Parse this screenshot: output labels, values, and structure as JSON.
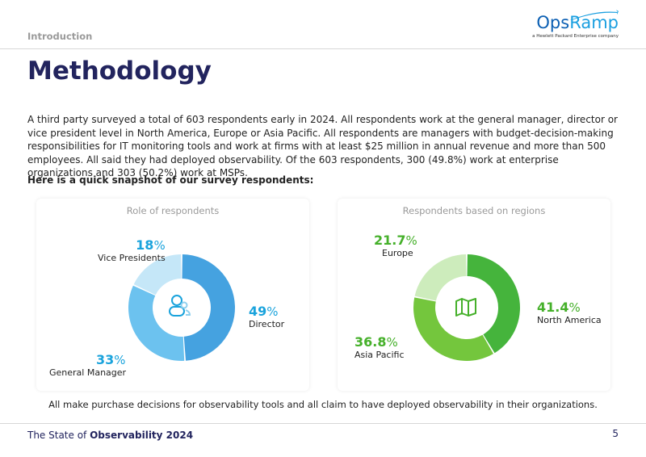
{
  "header": {
    "section": "Introduction",
    "logo": {
      "brand_a": "Ops",
      "brand_b": "Ramp",
      "tagline": "a Hewlett Packard Enterprise company"
    }
  },
  "title": "Methodology",
  "body": "A third party surveyed a total of 603 respondents early in 2024. All respondents work at the general manager, director or vice president level in North America, Europe or Asia Pacific. All respondents are managers with budget-decision-making responsibilities for IT monitoring tools and work at firms with at least $25 million in annual revenue and more than 500 employees. All said they had deployed observability. Of the 603 respondents, 300 (49.8%) work at enterprise organizations and 303 (50.2%) work at MSPs.",
  "snapshot_heading": "Here is a quick snapshot of our survey respondents:",
  "chart_data": [
    {
      "type": "pie",
      "title": "Role of respondents",
      "center_icon": "people-icon",
      "segments": [
        {
          "label": "Director",
          "value_num": 49,
          "value": "49",
          "unit": "%",
          "color": "#45a2e0"
        },
        {
          "label": "General Manager",
          "value_num": 33,
          "value": "33",
          "unit": "%",
          "color": "#6cc2ef"
        },
        {
          "label": "Vice Presidents",
          "value_num": 18,
          "value": "18",
          "unit": "%",
          "color": "#c5e7f8"
        }
      ]
    },
    {
      "type": "pie",
      "title": "Respondents based on regions",
      "center_icon": "map-icon",
      "segments": [
        {
          "label": "North America",
          "value_num": 41.4,
          "value": "41.4",
          "unit": "%",
          "color": "#45b43c"
        },
        {
          "label": "Asia Pacific",
          "value_num": 36.8,
          "value": "36.8",
          "unit": "%",
          "color": "#74c63d"
        },
        {
          "label": "Europe",
          "value_num": 21.7,
          "value": "21.7",
          "unit": "%",
          "color": "#cdecbc"
        }
      ]
    }
  ],
  "footnote": "All make purchase decisions for observability tools and all claim to have deployed observability in their organizations.",
  "footer": {
    "prefix": "The State of ",
    "emphasis": "Observability 2024",
    "page": "5"
  },
  "colors": {
    "navy": "#22245e",
    "blue_accent": "#1aa3dc",
    "green_accent": "#45b02a"
  }
}
